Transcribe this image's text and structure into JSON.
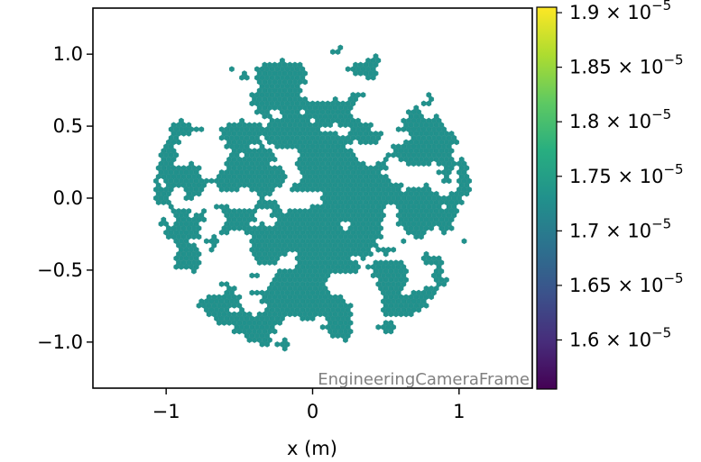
{
  "chart_data": {
    "type": "scatter",
    "subtype": "hexagonal camera pixel map",
    "title": "",
    "xlabel": "x  (m)",
    "ylabel": "",
    "frame_label": "EngineeringCameraFrame",
    "xlim": [
      -1.5,
      1.5
    ],
    "ylim": [
      -1.32,
      1.32
    ],
    "xticks": [
      {
        "value": -1,
        "label": "−1"
      },
      {
        "value": 0,
        "label": "0"
      },
      {
        "value": 1,
        "label": "1"
      }
    ],
    "yticks": [
      {
        "value": 1.0,
        "label": "1.0"
      },
      {
        "value": 0.5,
        "label": "0.5"
      },
      {
        "value": 0.0,
        "label": "0.0"
      },
      {
        "value": -0.5,
        "label": "−0.5"
      },
      {
        "value": -1.0,
        "label": "−1.0"
      }
    ],
    "camera_radius": 1.08,
    "pixel_spacing": 0.0345,
    "pixel_value": 1.75e-05,
    "pixel_color": "#21918c",
    "colormap": "viridis",
    "colorbar": {
      "range": [
        1.555e-05,
        1.905e-05
      ],
      "ticks": [
        {
          "value": 1.6e-05,
          "mantissa": "1.6",
          "exponent": "−5"
        },
        {
          "value": 1.65e-05,
          "mantissa": "1.65",
          "exponent": "−5"
        },
        {
          "value": 1.7e-05,
          "mantissa": "1.7",
          "exponent": "−5"
        },
        {
          "value": 1.75e-05,
          "mantissa": "1.75",
          "exponent": "−5"
        },
        {
          "value": 1.8e-05,
          "mantissa": "1.8",
          "exponent": "−5"
        },
        {
          "value": 1.85e-05,
          "mantissa": "1.85",
          "exponent": "−5"
        },
        {
          "value": 1.9e-05,
          "mantissa": "1.9",
          "exponent": "−5"
        }
      ]
    }
  }
}
